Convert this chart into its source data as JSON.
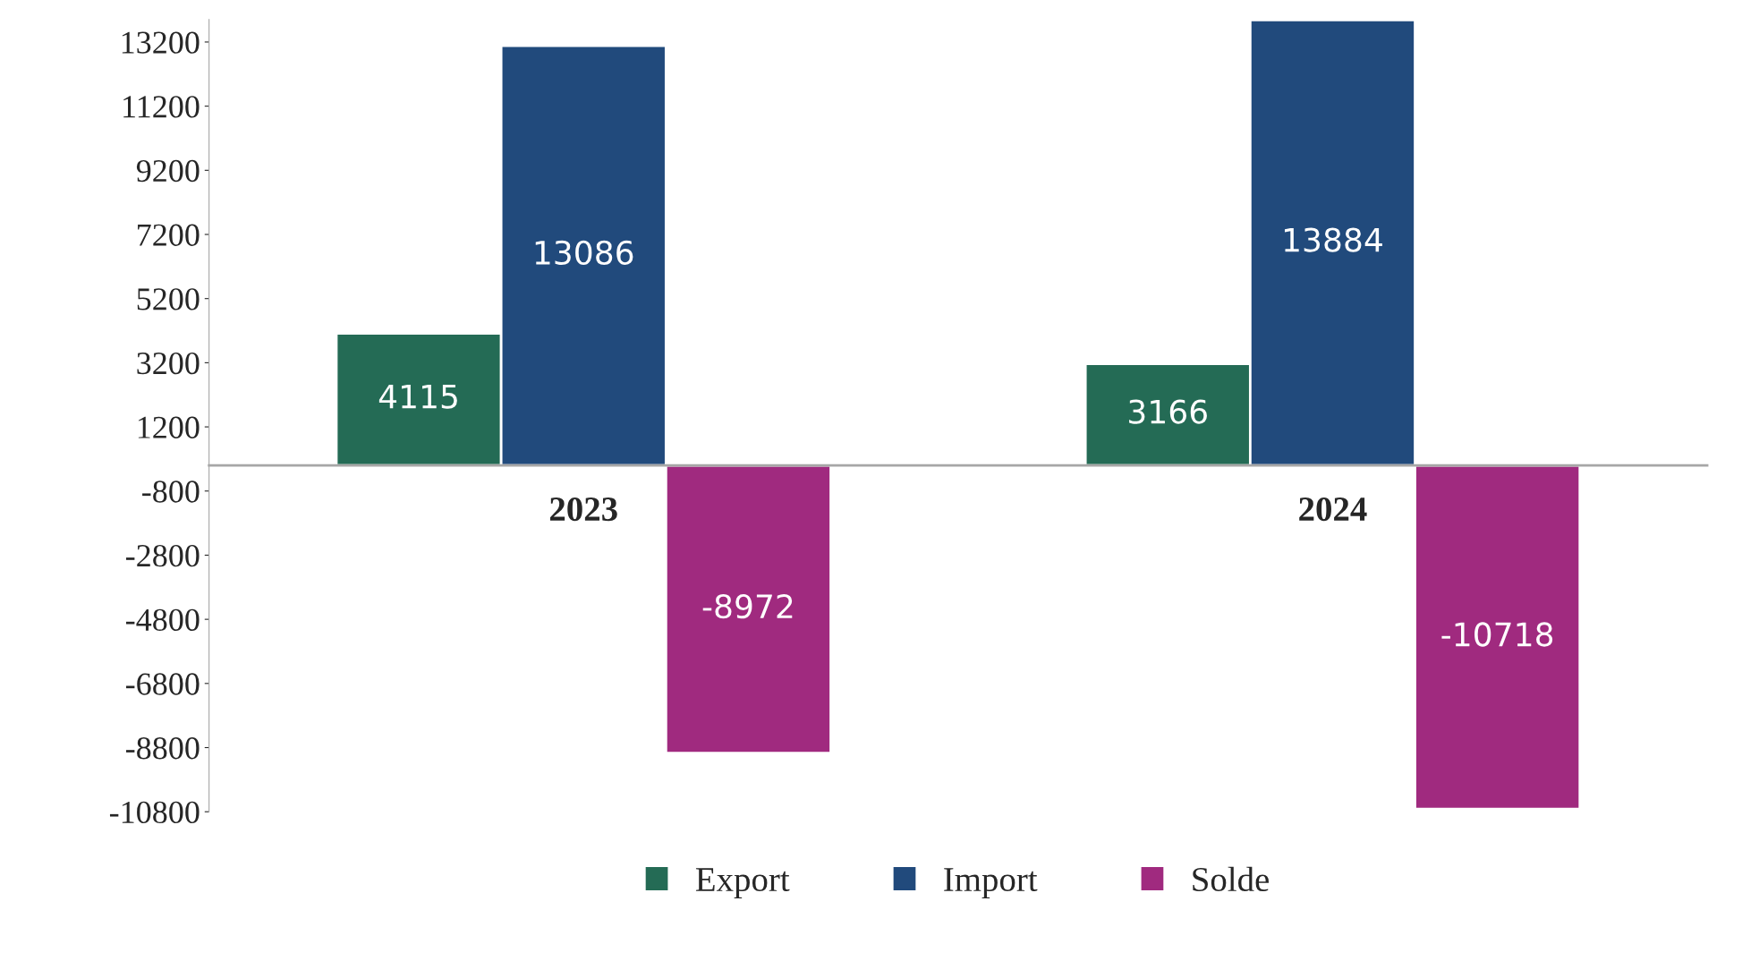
{
  "chart_data": {
    "type": "bar",
    "categories": [
      "2023",
      "2024"
    ],
    "series": [
      {
        "name": "Export",
        "color": "#246b55",
        "values": [
          4115,
          3166
        ]
      },
      {
        "name": "Import",
        "color": "#214a7c",
        "values": [
          13086,
          13884
        ]
      },
      {
        "name": "Solde",
        "color": "#a02a7f",
        "values": [
          -8972,
          -10718
        ]
      }
    ],
    "ylim": [
      -10800,
      13900
    ],
    "yticks": [
      -10800,
      -8800,
      -6800,
      -4800,
      -2800,
      -800,
      1200,
      3200,
      5200,
      7200,
      9200,
      11200,
      13200
    ],
    "data_labels": true,
    "grid": false,
    "legend": "bottom"
  }
}
